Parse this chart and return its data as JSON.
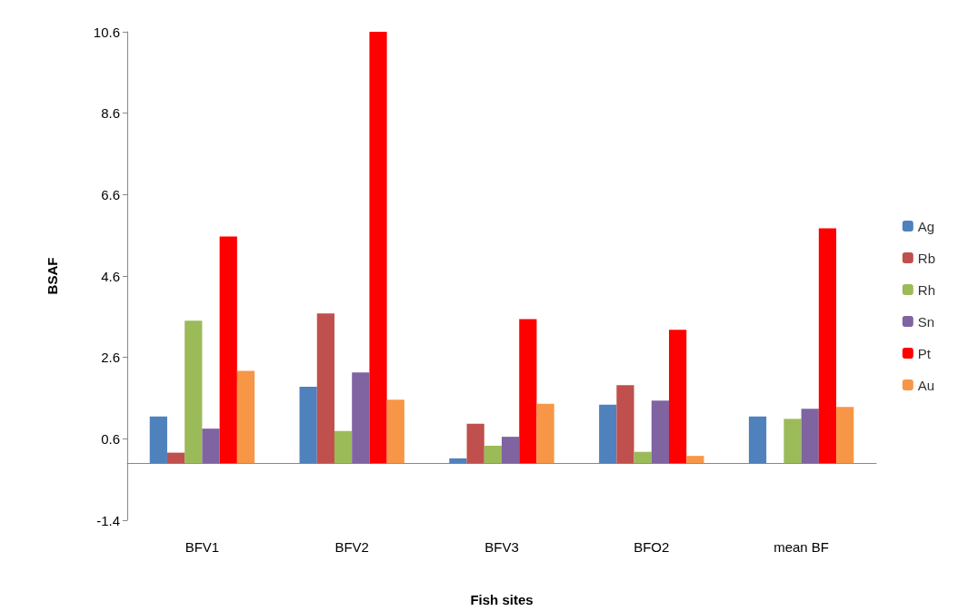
{
  "chart_data": {
    "type": "bar",
    "xlabel": "Fish sites",
    "ylabel": "BSAF",
    "categories": [
      "BFV1",
      "BFV2",
      "BFV3",
      "BFO2",
      "mean BF"
    ],
    "series": [
      {
        "name": "Ag",
        "color": "#4f81bd",
        "values": [
          1.15,
          1.88,
          0.12,
          1.44,
          1.15
        ]
      },
      {
        "name": "Rb",
        "color": "#c0504d",
        "values": [
          0.26,
          3.68,
          0.97,
          1.92,
          null
        ]
      },
      {
        "name": "Rh",
        "color": "#9bbb59",
        "values": [
          3.5,
          0.79,
          0.43,
          0.28,
          1.09
        ]
      },
      {
        "name": "Sn",
        "color": "#8064a2",
        "values": [
          0.85,
          2.23,
          0.65,
          1.54,
          1.34
        ]
      },
      {
        "name": "Pt",
        "color": "#ff0000",
        "values": [
          5.57,
          10.6,
          3.54,
          3.28,
          5.77
        ]
      },
      {
        "name": "Au",
        "color": "#f79646",
        "values": [
          2.27,
          1.56,
          1.46,
          0.18,
          1.38
        ]
      }
    ],
    "ylim": [
      -1.4,
      10.6
    ],
    "yticks": [
      -1.4,
      0.6,
      2.6,
      4.6,
      6.6,
      8.6,
      10.6
    ],
    "grid": false,
    "legend": "right"
  }
}
